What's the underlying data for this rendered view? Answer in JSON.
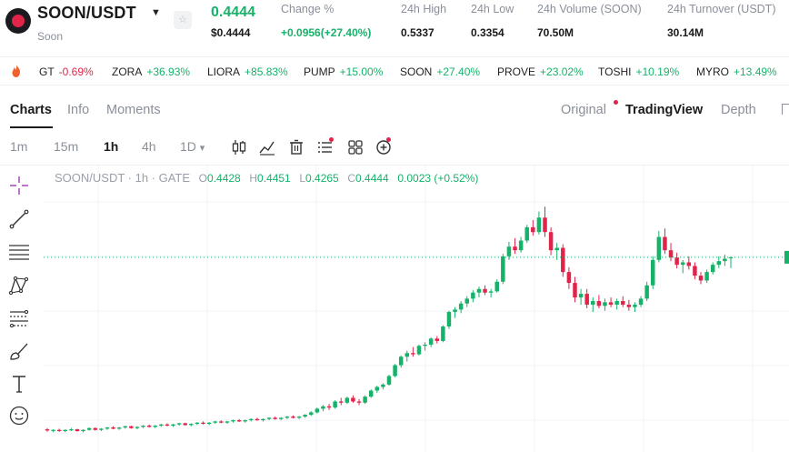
{
  "header": {
    "pair": "SOON/USDT",
    "pair_caret": "▼",
    "subtitle": "Soon",
    "fav_icon": "☆",
    "price": "0.4444",
    "price_usd": "$0.4444",
    "stats": [
      {
        "label": "Change %",
        "value": "+0.0956(+27.40%)",
        "up": true
      },
      {
        "label": "24h High",
        "value": "0.5337"
      },
      {
        "label": "24h Low",
        "value": "0.3354"
      },
      {
        "label": "24h Volume (SOON)",
        "value": "70.50M"
      },
      {
        "label": "24h Turnover (USDT)",
        "value": "30.14M"
      }
    ]
  },
  "ticker": [
    {
      "symbol": "GT",
      "change": "-0.69%",
      "up": false
    },
    {
      "symbol": "ZORA",
      "change": "+36.93%",
      "up": true
    },
    {
      "symbol": "LIORA",
      "change": "+85.83%",
      "up": true
    },
    {
      "symbol": "PUMP",
      "change": "+15.00%",
      "up": true
    },
    {
      "symbol": "SOON",
      "change": "+27.40%",
      "up": true
    },
    {
      "symbol": "PROVE",
      "change": "+23.02%",
      "up": true
    },
    {
      "symbol": "TOSHI",
      "change": "+10.19%",
      "up": true
    },
    {
      "symbol": "MYRO",
      "change": "+13.49%",
      "up": true
    }
  ],
  "tabs": [
    "Charts",
    "Info",
    "Moments"
  ],
  "views": [
    "Original",
    "TradingView",
    "Depth"
  ],
  "timeframes": [
    "1m",
    "15m",
    "1h",
    "4h",
    "1D"
  ],
  "timeframe_caret": "▾",
  "active_timeframe": "1h",
  "toolbar_icons": [
    "candlestick-icon",
    "indicator-icon",
    "trash-icon",
    "list-icon",
    "grid-icon",
    "add-indicator-icon"
  ],
  "sidebar_icons": [
    "crosshair-icon",
    "trendline-icon",
    "horizontal-lines-icon",
    "pattern-icon",
    "fib-icon",
    "brush-icon",
    "text-icon",
    "emoji-icon"
  ],
  "legend": {
    "title": "SOON/USDT · 1h · GATE",
    "o_label": "O",
    "o": "0.4428",
    "h_label": "H",
    "h": "0.4451",
    "l_label": "L",
    "l": "0.4265",
    "c_label": "C",
    "c": "0.4444",
    "change": "0.0023 (+0.52%)"
  },
  "colors": {
    "up": "#17b26a",
    "down": "#e0244a",
    "text": "#1a1a1a",
    "muted": "#8a8f99"
  },
  "chart_data": {
    "type": "candlestick",
    "interval": "1h",
    "last_close": 0.4444,
    "ylim": [
      0.13,
      0.56
    ],
    "grid": true,
    "candles": [
      [
        0.16,
        0.162,
        0.156,
        0.158
      ],
      [
        0.158,
        0.16,
        0.155,
        0.159
      ],
      [
        0.159,
        0.161,
        0.156,
        0.157
      ],
      [
        0.157,
        0.16,
        0.155,
        0.159
      ],
      [
        0.159,
        0.162,
        0.157,
        0.16
      ],
      [
        0.16,
        0.161,
        0.156,
        0.157
      ],
      [
        0.157,
        0.16,
        0.155,
        0.159
      ],
      [
        0.159,
        0.163,
        0.158,
        0.162
      ],
      [
        0.162,
        0.163,
        0.158,
        0.159
      ],
      [
        0.159,
        0.162,
        0.157,
        0.161
      ],
      [
        0.161,
        0.164,
        0.159,
        0.163
      ],
      [
        0.163,
        0.165,
        0.16,
        0.161
      ],
      [
        0.161,
        0.164,
        0.159,
        0.163
      ],
      [
        0.163,
        0.166,
        0.161,
        0.165
      ],
      [
        0.165,
        0.166,
        0.161,
        0.162
      ],
      [
        0.162,
        0.165,
        0.16,
        0.164
      ],
      [
        0.164,
        0.167,
        0.162,
        0.166
      ],
      [
        0.166,
        0.168,
        0.163,
        0.164
      ],
      [
        0.164,
        0.167,
        0.162,
        0.166
      ],
      [
        0.166,
        0.169,
        0.164,
        0.168
      ],
      [
        0.168,
        0.17,
        0.165,
        0.166
      ],
      [
        0.166,
        0.169,
        0.164,
        0.168
      ],
      [
        0.168,
        0.171,
        0.166,
        0.17
      ],
      [
        0.17,
        0.171,
        0.166,
        0.167
      ],
      [
        0.167,
        0.17,
        0.165,
        0.169
      ],
      [
        0.169,
        0.172,
        0.167,
        0.171
      ],
      [
        0.171,
        0.173,
        0.168,
        0.169
      ],
      [
        0.169,
        0.172,
        0.167,
        0.171
      ],
      [
        0.171,
        0.174,
        0.169,
        0.173
      ],
      [
        0.173,
        0.175,
        0.17,
        0.171
      ],
      [
        0.171,
        0.174,
        0.169,
        0.173
      ],
      [
        0.173,
        0.176,
        0.171,
        0.175
      ],
      [
        0.175,
        0.177,
        0.172,
        0.173
      ],
      [
        0.173,
        0.176,
        0.171,
        0.175
      ],
      [
        0.175,
        0.178,
        0.173,
        0.177
      ],
      [
        0.177,
        0.179,
        0.174,
        0.175
      ],
      [
        0.175,
        0.178,
        0.173,
        0.177
      ],
      [
        0.177,
        0.18,
        0.175,
        0.179
      ],
      [
        0.179,
        0.181,
        0.176,
        0.177
      ],
      [
        0.177,
        0.18,
        0.175,
        0.179
      ],
      [
        0.179,
        0.182,
        0.177,
        0.181
      ],
      [
        0.181,
        0.183,
        0.178,
        0.179
      ],
      [
        0.179,
        0.182,
        0.177,
        0.181
      ],
      [
        0.181,
        0.185,
        0.179,
        0.184
      ],
      [
        0.184,
        0.19,
        0.182,
        0.188
      ],
      [
        0.188,
        0.196,
        0.186,
        0.194
      ],
      [
        0.194,
        0.2,
        0.19,
        0.198
      ],
      [
        0.198,
        0.202,
        0.192,
        0.196
      ],
      [
        0.196,
        0.208,
        0.194,
        0.206
      ],
      [
        0.206,
        0.212,
        0.2,
        0.204
      ],
      [
        0.204,
        0.214,
        0.202,
        0.212
      ],
      [
        0.212,
        0.216,
        0.204,
        0.206
      ],
      [
        0.206,
        0.21,
        0.2,
        0.204
      ],
      [
        0.204,
        0.216,
        0.202,
        0.214
      ],
      [
        0.214,
        0.226,
        0.212,
        0.224
      ],
      [
        0.224,
        0.232,
        0.22,
        0.23
      ],
      [
        0.23,
        0.236,
        0.226,
        0.234
      ],
      [
        0.234,
        0.25,
        0.232,
        0.248
      ],
      [
        0.248,
        0.268,
        0.246,
        0.266
      ],
      [
        0.266,
        0.282,
        0.262,
        0.28
      ],
      [
        0.28,
        0.29,
        0.272,
        0.286
      ],
      [
        0.286,
        0.296,
        0.28,
        0.284
      ],
      [
        0.284,
        0.3,
        0.282,
        0.298
      ],
      [
        0.298,
        0.304,
        0.29,
        0.3
      ],
      [
        0.3,
        0.312,
        0.296,
        0.31
      ],
      [
        0.31,
        0.314,
        0.302,
        0.306
      ],
      [
        0.306,
        0.332,
        0.304,
        0.33
      ],
      [
        0.33,
        0.356,
        0.326,
        0.354
      ],
      [
        0.354,
        0.362,
        0.344,
        0.358
      ],
      [
        0.358,
        0.372,
        0.352,
        0.368
      ],
      [
        0.368,
        0.38,
        0.362,
        0.376
      ],
      [
        0.376,
        0.39,
        0.37,
        0.386
      ],
      [
        0.386,
        0.396,
        0.378,
        0.392
      ],
      [
        0.392,
        0.398,
        0.382,
        0.386
      ],
      [
        0.386,
        0.392,
        0.378,
        0.388
      ],
      [
        0.388,
        0.408,
        0.386,
        0.404
      ],
      [
        0.404,
        0.45,
        0.4,
        0.446
      ],
      [
        0.446,
        0.47,
        0.44,
        0.462
      ],
      [
        0.462,
        0.476,
        0.45,
        0.456
      ],
      [
        0.456,
        0.478,
        0.452,
        0.472
      ],
      [
        0.472,
        0.498,
        0.468,
        0.494
      ],
      [
        0.494,
        0.506,
        0.48,
        0.486
      ],
      [
        0.486,
        0.52,
        0.482,
        0.51
      ],
      [
        0.51,
        0.528,
        0.478,
        0.486
      ],
      [
        0.486,
        0.494,
        0.448,
        0.456
      ],
      [
        0.456,
        0.468,
        0.44,
        0.46
      ],
      [
        0.46,
        0.466,
        0.412,
        0.42
      ],
      [
        0.42,
        0.428,
        0.392,
        0.402
      ],
      [
        0.402,
        0.412,
        0.37,
        0.378
      ],
      [
        0.378,
        0.392,
        0.366,
        0.384
      ],
      [
        0.384,
        0.392,
        0.36,
        0.366
      ],
      [
        0.366,
        0.378,
        0.354,
        0.372
      ],
      [
        0.372,
        0.382,
        0.36,
        0.364
      ],
      [
        0.364,
        0.376,
        0.356,
        0.37
      ],
      [
        0.37,
        0.378,
        0.362,
        0.366
      ],
      [
        0.366,
        0.376,
        0.358,
        0.372
      ],
      [
        0.372,
        0.38,
        0.362,
        0.366
      ],
      [
        0.366,
        0.374,
        0.356,
        0.362
      ],
      [
        0.362,
        0.37,
        0.354,
        0.366
      ],
      [
        0.366,
        0.38,
        0.362,
        0.376
      ],
      [
        0.376,
        0.404,
        0.372,
        0.398
      ],
      [
        0.398,
        0.446,
        0.392,
        0.44
      ],
      [
        0.44,
        0.488,
        0.436,
        0.478
      ],
      [
        0.478,
        0.492,
        0.45,
        0.456
      ],
      [
        0.456,
        0.468,
        0.438,
        0.444
      ],
      [
        0.444,
        0.452,
        0.426,
        0.432
      ],
      [
        0.432,
        0.44,
        0.418,
        0.436
      ],
      [
        0.436,
        0.446,
        0.424,
        0.43
      ],
      [
        0.43,
        0.436,
        0.408,
        0.414
      ],
      [
        0.414,
        0.42,
        0.4,
        0.406
      ],
      [
        0.406,
        0.424,
        0.402,
        0.42
      ],
      [
        0.42,
        0.436,
        0.416,
        0.432
      ],
      [
        0.432,
        0.446,
        0.426,
        0.438
      ],
      [
        0.438,
        0.449,
        0.43,
        0.442
      ],
      [
        0.4428,
        0.4451,
        0.4265,
        0.4444
      ]
    ]
  }
}
